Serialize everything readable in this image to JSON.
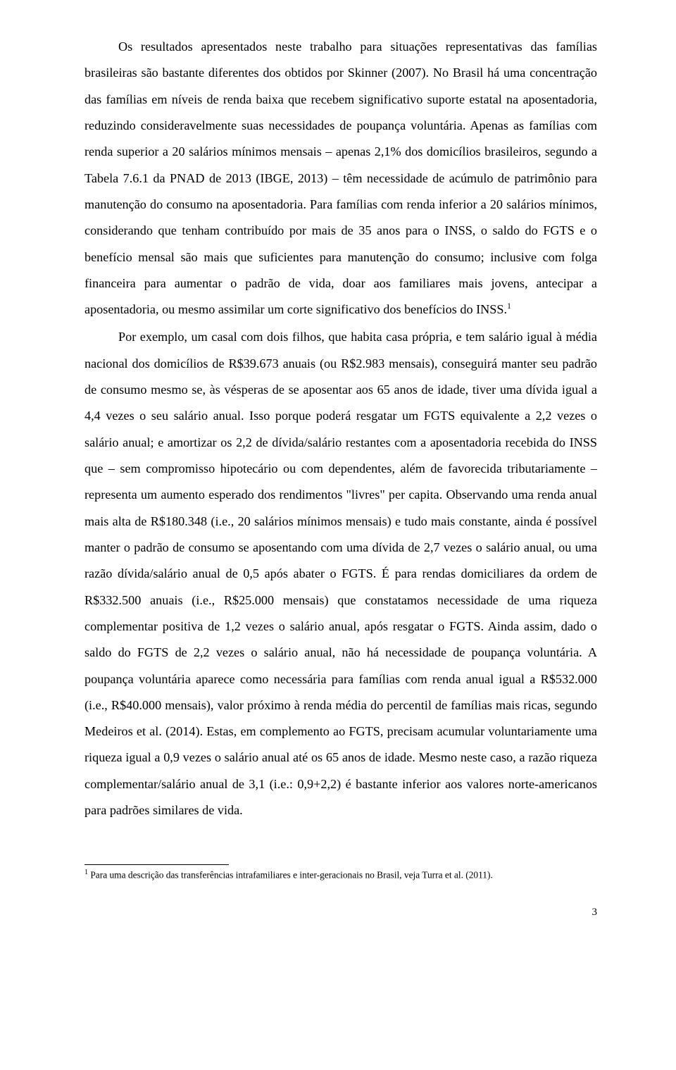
{
  "paragraphs": {
    "p1_a": "Os resultados apresentados neste trabalho para situações representativas das famílias brasileiras são bastante diferentes dos obtidos por Skinner (2007). No Brasil há uma concentração das famílias em níveis de renda baixa que recebem significativo suporte estatal na aposentadoria, reduzindo consideravelmente suas necessidades de poupança voluntária. Apenas as famílias com renda superior a 20 salários mínimos mensais – apenas 2,1% dos domicílios brasileiros, segundo a Tabela 7.6.1 da PNAD de 2013 (IBGE, 2013) – têm necessidade de acúmulo de patrimônio para manutenção do consumo na aposentadoria. Para famílias com renda inferior a 20 salários mínimos, considerando que tenham contribuído por mais de 35 anos para o INSS, o saldo do FGTS e o benefício mensal são mais que suficientes para manutenção do consumo; inclusive com folga financeira para aumentar o padrão de vida, doar aos familiares mais jovens, antecipar a aposentadoria, ou mesmo assimilar um corte significativo dos benefícios do INSS.",
    "p1_sup": "1",
    "p2": "Por exemplo, um casal com dois filhos, que habita casa própria, e tem salário igual à média nacional dos domicílios de R$39.673 anuais (ou R$2.983 mensais), conseguirá manter seu padrão de consumo mesmo se, às vésperas de se aposentar aos 65 anos de idade, tiver uma dívida igual a 4,4 vezes o seu salário anual. Isso porque poderá resgatar um FGTS equivalente a 2,2 vezes o salário anual; e amortizar os 2,2 de dívida/salário restantes com a aposentadoria recebida do INSS que – sem compromisso hipotecário ou com dependentes, além de favorecida tributariamente – representa um aumento esperado dos rendimentos \"livres\" per capita. Observando uma renda anual mais alta de R$180.348 (i.e., 20 salários mínimos mensais) e tudo mais constante, ainda é possível manter o padrão de consumo se aposentando com uma dívida de 2,7 vezes o salário anual, ou uma razão dívida/salário anual de 0,5 após abater o FGTS. É para rendas domiciliares da ordem de R$332.500 anuais (i.e., R$25.000 mensais) que constatamos necessidade de uma riqueza complementar positiva de 1,2 vezes o salário anual, após resgatar o FGTS. Ainda assim, dado o saldo do FGTS de 2,2 vezes o salário anual, não há necessidade de poupança voluntária. A poupança voluntária aparece como necessária para famílias com renda anual igual a R$532.000 (i.e., R$40.000 mensais), valor próximo à renda média do percentil de famílias mais ricas, segundo Medeiros et al. (2014). Estas, em complemento ao FGTS, precisam acumular voluntariamente uma riqueza igual a 0,9 vezes o salário anual até os 65 anos de idade. Mesmo neste caso, a razão riqueza complementar/salário anual de 3,1 (i.e.: 0,9+2,2) é bastante inferior aos valores norte-americanos para padrões similares de vida."
  },
  "footnote": {
    "marker": "1",
    "text": " Para uma descrição das transferências intrafamiliares e inter-geracionais no Brasil, veja Turra et al. (2011)."
  },
  "page_number": "3"
}
